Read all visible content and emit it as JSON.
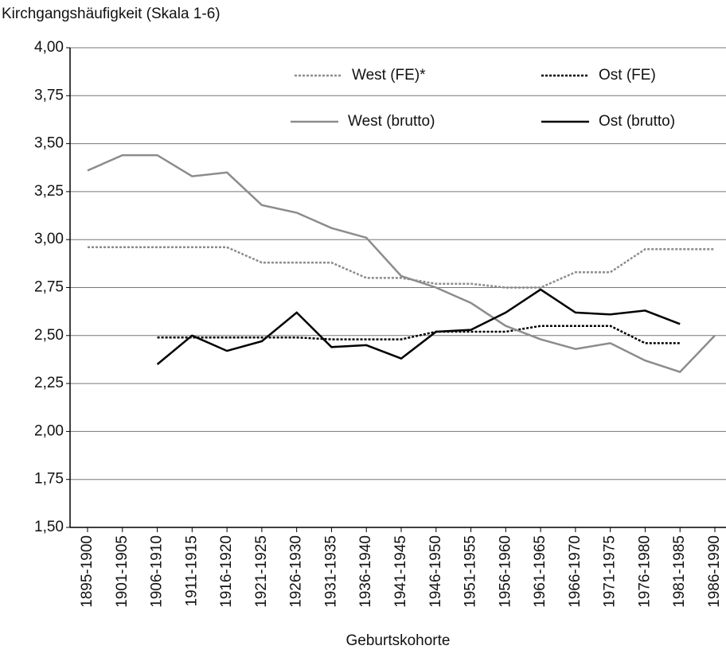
{
  "chart_data": {
    "type": "line",
    "title": "Kirchgangshäufigkeit (Skala 1-6)",
    "x_label": "Geburtskohorte",
    "categories": [
      "1895-1900",
      "1901-1905",
      "1906-1910",
      "1911-1915",
      "1916-1920",
      "1921-1925",
      "1926-1930",
      "1931-1935",
      "1936-1940",
      "1941-1945",
      "1946-1950",
      "1951-1955",
      "1956-1960",
      "1961-1965",
      "1966-1970",
      "1971-1975",
      "1976-1980",
      "1981-1985",
      "1986-1990"
    ],
    "series": [
      {
        "name": "West (FE)*",
        "color": "#8c8c8c",
        "dash": true,
        "values": [
          2.96,
          2.96,
          2.96,
          2.96,
          2.96,
          2.88,
          2.88,
          2.88,
          2.8,
          2.8,
          2.77,
          2.77,
          2.75,
          2.75,
          2.83,
          2.83,
          2.95,
          2.95,
          2.95
        ]
      },
      {
        "name": "Ost (FE)",
        "color": "#000000",
        "dash": true,
        "values": [
          null,
          null,
          2.49,
          2.49,
          2.49,
          2.49,
          2.49,
          2.48,
          2.48,
          2.48,
          2.52,
          2.52,
          2.52,
          2.55,
          2.55,
          2.55,
          2.46,
          2.46,
          null
        ]
      },
      {
        "name": "West (brutto)",
        "color": "#8c8c8c",
        "dash": false,
        "values": [
          3.36,
          3.44,
          3.44,
          3.33,
          3.35,
          3.18,
          3.14,
          3.06,
          3.01,
          2.81,
          2.75,
          2.67,
          2.55,
          2.48,
          2.43,
          2.46,
          2.37,
          2.31,
          2.5
        ]
      },
      {
        "name": "Ost (brutto)",
        "color": "#000000",
        "dash": false,
        "values": [
          null,
          null,
          2.35,
          2.5,
          2.42,
          2.47,
          2.62,
          2.44,
          2.45,
          2.38,
          2.52,
          2.53,
          2.62,
          2.74,
          2.62,
          2.61,
          2.63,
          2.56,
          null
        ]
      }
    ],
    "ylim": [
      1.5,
      4
    ],
    "yticks": [
      {
        "value": 1.5,
        "label": "1,50"
      },
      {
        "value": 1.75,
        "label": "1,75"
      },
      {
        "value": 2,
        "label": "2,00"
      },
      {
        "value": 2.25,
        "label": "2,25"
      },
      {
        "value": 2.5,
        "label": "2,50"
      },
      {
        "value": 2.75,
        "label": "2,75"
      },
      {
        "value": 3,
        "label": "3,00"
      },
      {
        "value": 3.25,
        "label": "3,25"
      },
      {
        "value": 3.5,
        "label": "3,50"
      },
      {
        "value": 3.75,
        "label": "3,75"
      },
      {
        "value": 4,
        "label": "4,00"
      }
    ],
    "grid": true
  }
}
